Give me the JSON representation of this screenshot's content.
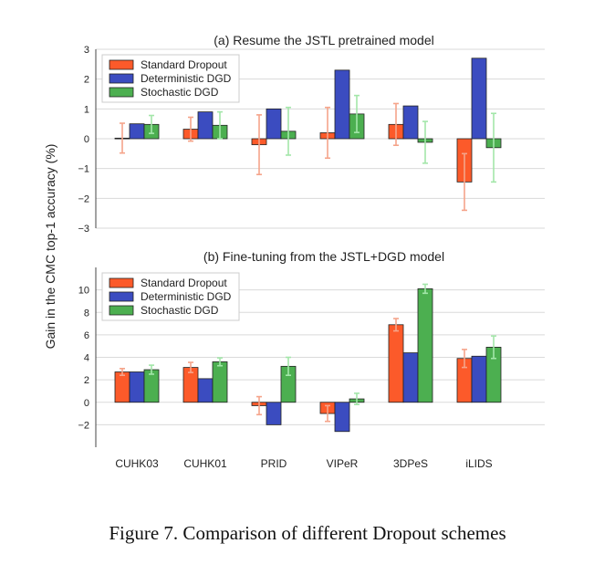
{
  "figure_caption": "Figure 7. Comparison of different Dropout schemes",
  "shared_ylabel": "Gain in the CMC top-1 accuracy (%)",
  "categories": [
    "CUHK03",
    "CUHK01",
    "PRID",
    "VIPeR",
    "3DPeS",
    "iLIDS"
  ],
  "colors": {
    "standard": "#fc5a2a",
    "deterministic": "#3b4cc0",
    "stochastic": "#4caf50",
    "err_standard": "#f5a48a",
    "err_deterministic": "#8d96e0",
    "err_stochastic": "#a3e6a9"
  },
  "chart_data": [
    {
      "type": "bar",
      "title": "(a) Resume the JSTL pretrained model",
      "categories": [
        "CUHK03",
        "CUHK01",
        "PRID",
        "VIPeR",
        "3DPeS",
        "iLIDS"
      ],
      "ylim": [
        -3,
        3
      ],
      "yticks": [
        -3,
        -2,
        -1,
        0,
        1,
        2,
        3
      ],
      "ytick_labels": [
        "−3",
        "−2",
        "−1",
        "0",
        "1",
        "2",
        "3"
      ],
      "legend_position": "top-left",
      "grid": "horizontal",
      "series": [
        {
          "name": "Standard Dropout",
          "values": [
            0.02,
            0.32,
            -0.2,
            0.2,
            0.48,
            -1.45
          ],
          "errors": [
            0.5,
            0.4,
            1.0,
            0.85,
            0.7,
            0.95
          ]
        },
        {
          "name": "Deterministic DGD",
          "values": [
            0.5,
            0.9,
            1.0,
            2.3,
            1.1,
            2.7
          ],
          "errors": [
            0,
            0,
            0,
            0,
            0,
            0
          ]
        },
        {
          "name": "Stochastic DGD",
          "values": [
            0.48,
            0.45,
            0.25,
            0.83,
            -0.12,
            -0.3
          ],
          "errors": [
            0.3,
            0.45,
            0.8,
            0.62,
            0.7,
            1.15
          ]
        }
      ]
    },
    {
      "type": "bar",
      "title": "(b) Fine-tuning from the JSTL+DGD model",
      "categories": [
        "CUHK03",
        "CUHK01",
        "PRID",
        "VIPeR",
        "3DPeS",
        "iLIDS"
      ],
      "ylim": [
        -4,
        12
      ],
      "yticks": [
        -2,
        0,
        2,
        4,
        6,
        8,
        10
      ],
      "ytick_labels": [
        "−2",
        "0",
        "2",
        "4",
        "6",
        "8",
        "10"
      ],
      "legend_position": "top-left",
      "grid": "horizontal",
      "series": [
        {
          "name": "Standard Dropout",
          "values": [
            2.7,
            3.1,
            -0.3,
            -1.0,
            6.9,
            3.9
          ],
          "errors": [
            0.3,
            0.45,
            0.8,
            0.7,
            0.55,
            0.8
          ]
        },
        {
          "name": "Deterministic DGD",
          "values": [
            2.7,
            2.1,
            -2.0,
            -2.6,
            4.4,
            4.1
          ],
          "errors": [
            0,
            0,
            0,
            0,
            0,
            0
          ]
        },
        {
          "name": "Stochastic DGD",
          "values": [
            2.9,
            3.6,
            3.2,
            0.3,
            10.1,
            4.9
          ],
          "errors": [
            0.4,
            0.35,
            0.8,
            0.5,
            0.4,
            1.0
          ]
        }
      ]
    }
  ]
}
